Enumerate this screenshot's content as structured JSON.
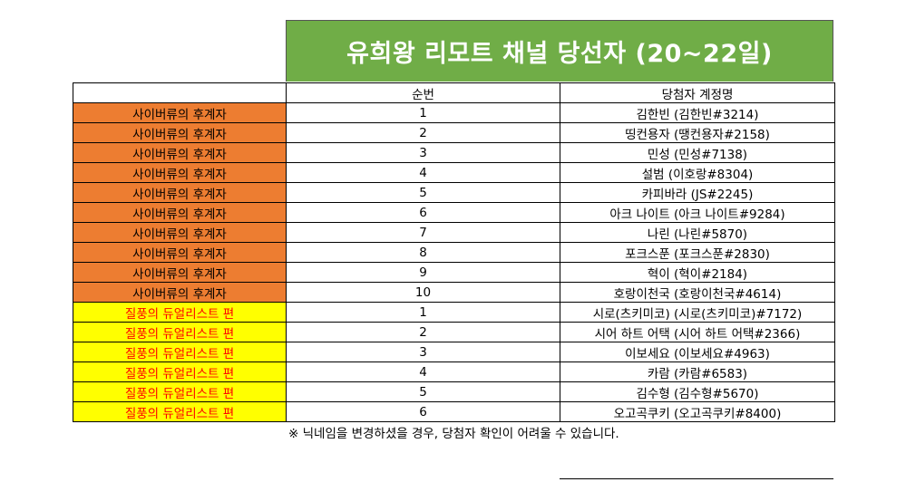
{
  "title": "유희왕 리모트 채널 당선자 (20~22일)",
  "headers": {
    "category": "",
    "number": "순번",
    "account": "당첨자 계정명"
  },
  "colors": {
    "title_bg": "#70ad47",
    "orange": "#ed7d31",
    "yellow": "#ffff00",
    "red_text": "#ff0000"
  },
  "rows": [
    {
      "category": "사이버류의 후계자",
      "style": "orange",
      "number": "1",
      "account": "김한빈 (김한빈#3214)"
    },
    {
      "category": "사이버류의 후계자",
      "style": "orange",
      "number": "2",
      "account": "띵컨용자 (땡컨용자#2158)"
    },
    {
      "category": "사이버류의 후계자",
      "style": "orange",
      "number": "3",
      "account": "민성 (민성#7138)"
    },
    {
      "category": "사이버류의 후계자",
      "style": "orange",
      "number": "4",
      "account": "설범 (이호랑#8304)"
    },
    {
      "category": "사이버류의 후계자",
      "style": "orange",
      "number": "5",
      "account": "카피바라 (JS#2245)"
    },
    {
      "category": "사이버류의 후계자",
      "style": "orange",
      "number": "6",
      "account": "아크 나이트 (아크 나이트#9284)"
    },
    {
      "category": "사이버류의 후계자",
      "style": "orange",
      "number": "7",
      "account": "나린 (나린#5870)"
    },
    {
      "category": "사이버류의 후계자",
      "style": "orange",
      "number": "8",
      "account": "포크스푼 (포크스푼#2830)"
    },
    {
      "category": "사이버류의 후계자",
      "style": "orange",
      "number": "9",
      "account": "혁이 (혁이#2184)"
    },
    {
      "category": "사이버류의 후계자",
      "style": "orange",
      "number": "10",
      "account": "호랑이천국 (호랑이천국#4614)"
    },
    {
      "category": "질풍의 듀얼리스트 편",
      "style": "yellow",
      "number": "1",
      "account": "시로(츠키미코) (시로(츠키미코)#7172)"
    },
    {
      "category": "질풍의 듀얼리스트 편",
      "style": "yellow",
      "number": "2",
      "account": "시어 하트 어택 (시어 하트 어택#2366)"
    },
    {
      "category": "질풍의 듀얼리스트 편",
      "style": "yellow",
      "number": "3",
      "account": "이보세요 (이보세요#4963)"
    },
    {
      "category": "질풍의 듀얼리스트 편",
      "style": "yellow",
      "number": "4",
      "account": "카람 (카람#6583)"
    },
    {
      "category": "질풍의 듀얼리스트 편",
      "style": "yellow",
      "number": "5",
      "account": "김수형 (김수형#5670)"
    },
    {
      "category": "질풍의 듀얼리스트 편",
      "style": "yellow",
      "number": "6",
      "account": "오고곡쿠키 (오고곡쿠키#8400)"
    }
  ],
  "footnote": "※ 닉네임을 변경하셨을 경우, 당첨자 확인이 어려울 수 있습니다."
}
